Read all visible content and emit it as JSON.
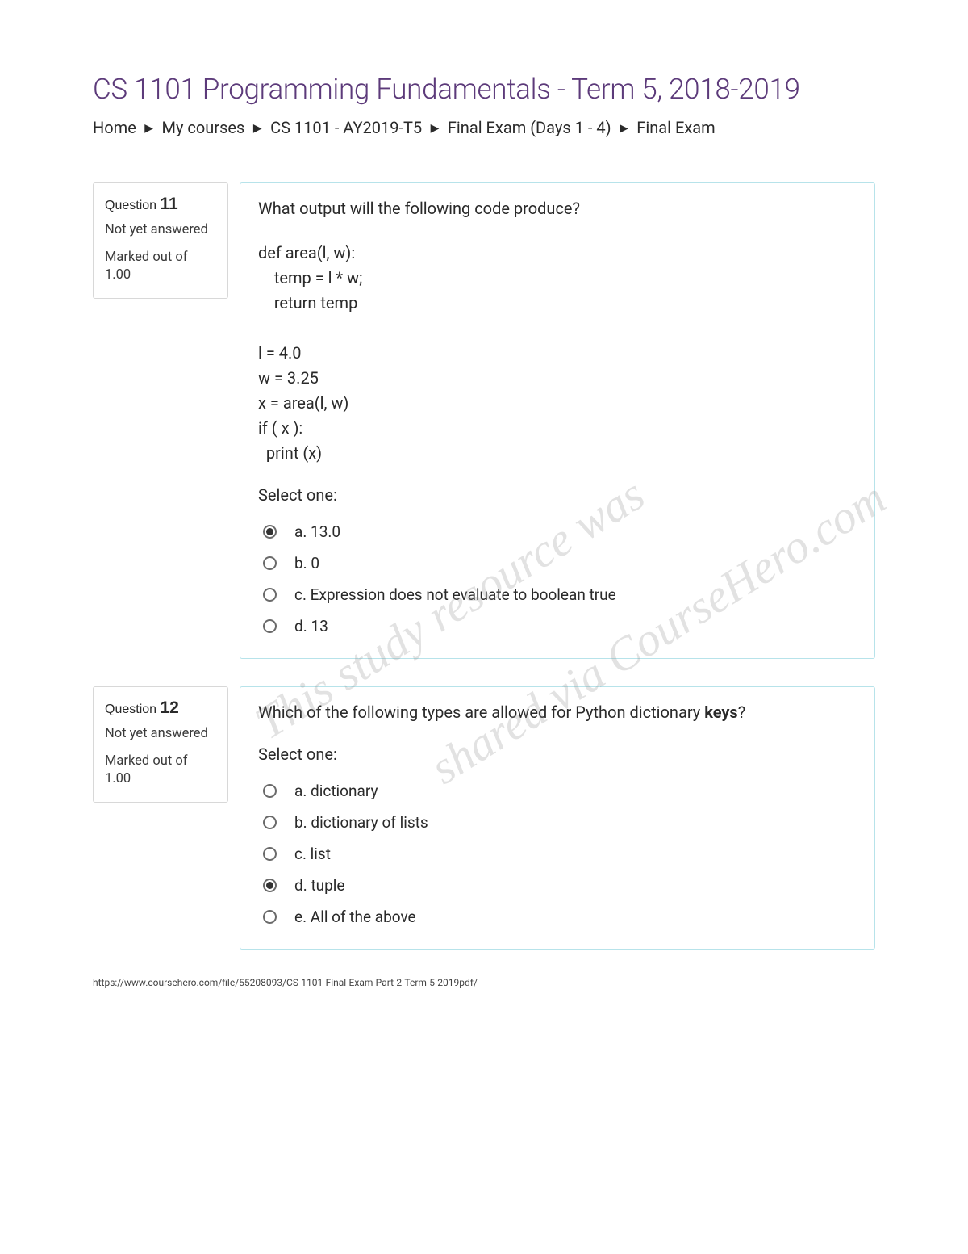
{
  "page_title": "CS 1101 Programming Fundamentals - Term 5, 2018-2019",
  "breadcrumb": {
    "items": [
      "Home",
      "My courses",
      "CS 1101 - AY2019-T5",
      "Final Exam (Days 1 - 4)",
      "Final Exam"
    ],
    "separator": "▶"
  },
  "questions": [
    {
      "label": "Question",
      "number": "11",
      "status": "Not yet answered",
      "mark_label": "Marked out of",
      "mark_value": "1.00",
      "prompt": "What output will the following code produce?",
      "code": "def area(l, w):\n    temp = l * w;\n    return temp\n\nl = 4.0\nw = 3.25\nx = area(l, w)\nif ( x ):\n  print (x)",
      "select_label": "Select one:",
      "options": [
        {
          "text": "a. 13.0",
          "checked": true
        },
        {
          "text": "b. 0",
          "checked": false
        },
        {
          "text": "c. Expression does not evaluate to boolean true",
          "checked": false
        },
        {
          "text": "d. 13",
          "checked": false
        }
      ]
    },
    {
      "label": "Question",
      "number": "12",
      "status": "Not yet answered",
      "mark_label": "Marked out of",
      "mark_value": "1.00",
      "prompt_html": "Which of the following types are allowed for Python dictionary <b>keys</b>?",
      "select_label": "Select one:",
      "options": [
        {
          "text": "a. dictionary",
          "checked": false
        },
        {
          "text": "b. dictionary of lists",
          "checked": false
        },
        {
          "text": "c. list",
          "checked": false
        },
        {
          "text": "d. tuple",
          "checked": true
        },
        {
          "text": "e. All of the above",
          "checked": false
        }
      ]
    }
  ],
  "watermark": {
    "line1": "This study resource was",
    "line2": "shared via CourseHero.com"
  },
  "footer_url": "https://www.coursehero.com/file/55208093/CS-1101-Final-Exam-Part-2-Term-5-2019pdf/",
  "colors": {
    "title": "#5c3a7a",
    "text": "#2a2a2a",
    "info_border": "#d8d8d8",
    "body_border": "#b7e3ea",
    "watermark": "rgba(140,140,140,0.25)"
  }
}
